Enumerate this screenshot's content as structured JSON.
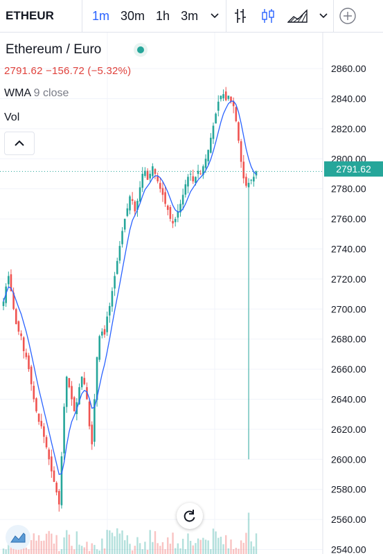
{
  "toolbar": {
    "symbol": "ETHEUR",
    "timeframes": [
      {
        "label": "1m",
        "active": true
      },
      {
        "label": "30m",
        "active": false
      },
      {
        "label": "1h",
        "active": false
      },
      {
        "label": "3m",
        "active": false
      }
    ],
    "icons": [
      "chevron-down-icon",
      "bar-style-icon",
      "candle-style-icon",
      "area-style-icon",
      "plus-circle-icon"
    ]
  },
  "legend": {
    "title": "Ethereum / Euro",
    "ohlc_text": "2791.62 −156.72 (−5.32%)",
    "indicator_name": "WMA",
    "indicator_args": "9 close",
    "volume_label": "Vol"
  },
  "price_label": "2791.62",
  "colors": {
    "up": "#26a69a",
    "down": "#ef5350",
    "wma": "#2962ff",
    "accent": "#2962ff"
  },
  "chart_data": {
    "type": "candlestick",
    "symbol": "ETHEUR",
    "y_ticks": [
      "2860.00",
      "2840.00",
      "2820.00",
      "2800.00",
      "2780.00",
      "2760.00",
      "2740.00",
      "2720.00",
      "2700.00",
      "2680.00",
      "2660.00",
      "2640.00",
      "2620.00",
      "2600.00",
      "2580.00",
      "2560.00",
      "2540.00"
    ],
    "ylim": [
      2537,
      2884
    ],
    "last_price": 2791.62,
    "change": -156.72,
    "change_pct": -5.32,
    "close_series": [
      2705,
      2715,
      2722,
      2712,
      2700,
      2690,
      2685,
      2682,
      2672,
      2668,
      2660,
      2650,
      2640,
      2632,
      2625,
      2622,
      2615,
      2608,
      2600,
      2592,
      2585,
      2578,
      2570,
      2602,
      2635,
      2655,
      2648,
      2640,
      2632,
      2638,
      2648,
      2655,
      2650,
      2640,
      2622,
      2610,
      2640,
      2668,
      2682,
      2685,
      2683,
      2695,
      2702,
      2712,
      2722,
      2732,
      2742,
      2752,
      2760,
      2767,
      2775,
      2772,
      2765,
      2772,
      2781,
      2790,
      2792,
      2786,
      2790,
      2795,
      2790,
      2785,
      2780,
      2776,
      2770,
      2766,
      2760,
      2757,
      2760,
      2765,
      2770,
      2776,
      2783,
      2788,
      2790,
      2785,
      2788,
      2792,
      2790,
      2795,
      2800,
      2806,
      2814,
      2822,
      2830,
      2838,
      2842,
      2843,
      2839,
      2842,
      2838,
      2835,
      2825,
      2812,
      2798,
      2787,
      2782,
      2784,
      2786,
      2788,
      2791.62
    ],
    "spike_low": 2600
  }
}
